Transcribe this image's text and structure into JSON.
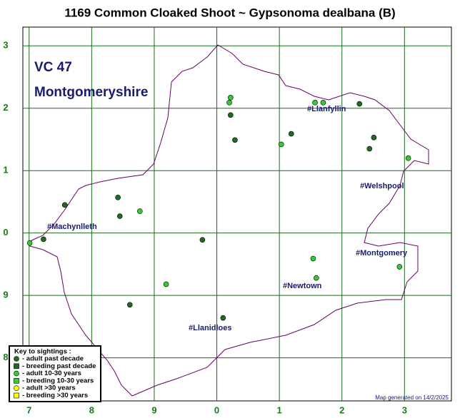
{
  "chart_data": {
    "type": "scatter",
    "title": "1169 Common Cloaked Shoot ~ Gypsonoma dealbana (B)",
    "vc_code": "VC 47",
    "vc_name": "Montgomeryshire",
    "legend_title": "Key to sightings :",
    "footer": "Map generated on 14/2/2025",
    "towns": [
      "#Llanfyllin",
      "#Welshpool",
      "#Machynlleth",
      "#Montgomery",
      "#Newtown",
      "#Llanidloes"
    ],
    "xlim": [
      -0.1,
      6.75
    ],
    "ylim": [
      -0.69,
      5.3
    ],
    "xticks": [
      {
        "value": 0,
        "label": "7"
      },
      {
        "value": 1,
        "label": "8"
      },
      {
        "value": 2,
        "label": "9"
      },
      {
        "value": 3,
        "label": "0"
      },
      {
        "value": 4,
        "label": "1"
      },
      {
        "value": 5,
        "label": "2"
      },
      {
        "value": 6,
        "label": "3"
      }
    ],
    "yticks": [
      {
        "value": 0,
        "label": "8"
      },
      {
        "value": 1,
        "label": "9"
      },
      {
        "value": 2,
        "label": "0"
      },
      {
        "value": 3,
        "label": "1"
      },
      {
        "value": 4,
        "label": "2"
      },
      {
        "value": 5,
        "label": "3"
      }
    ],
    "grid": true,
    "series": [
      {
        "name": "- adult past decade",
        "color": "#1f6b1f",
        "marker": "circle",
        "x": [
          3.22,
          3.29,
          4.19,
          5.44,
          5.51,
          5.28,
          0.57,
          1.42,
          1.45,
          0.23,
          2.77,
          1.61,
          3.1
        ],
        "values": [
          3.89,
          3.49,
          3.59,
          3.35,
          3.53,
          4.07,
          2.45,
          2.57,
          2.27,
          1.9,
          1.89,
          0.85,
          0.64
        ]
      },
      {
        "name": "- breeding past decade",
        "color": "#1f6b1f",
        "marker": "square",
        "x": [],
        "values": []
      },
      {
        "name": "- adult 10-30 years",
        "color": "#33cc33",
        "marker": "circle",
        "x": [
          3.22,
          3.2,
          4.03,
          4.57,
          4.7,
          6.06,
          1.77,
          0.01,
          2.19,
          4.54,
          4.59,
          5.92
        ],
        "values": [
          4.17,
          4.09,
          3.42,
          4.09,
          4.09,
          3.2,
          2.35,
          1.84,
          1.18,
          1.59,
          1.28,
          1.46
        ]
      },
      {
        "name": "- breeding 10-30 years",
        "color": "#33cc33",
        "marker": "square",
        "x": [],
        "values": []
      },
      {
        "name": "- adult >30 years",
        "color": "#ffff00",
        "marker": "circle",
        "x": [],
        "values": []
      },
      {
        "name": "- breeding >30 years",
        "color": "#ffff00",
        "marker": "square",
        "x": [],
        "values": []
      }
    ]
  }
}
